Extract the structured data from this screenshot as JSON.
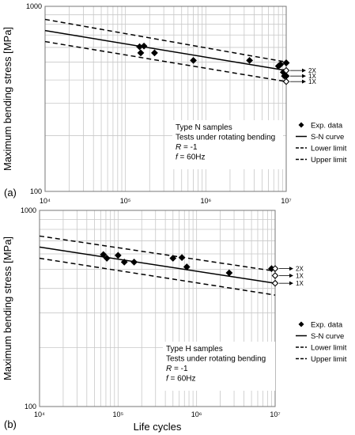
{
  "chart_data": [
    {
      "type": "scatter",
      "panel_label": "(a)",
      "title": "",
      "ylabel": "Maximum bending stress [MPa]",
      "xlabel": "",
      "x_scale": "log",
      "y_scale": "log",
      "xlim": [
        10000,
        10000000
      ],
      "ylim": [
        100,
        1000
      ],
      "x_ticks": [
        "10⁴",
        "10⁵",
        "10⁶",
        "10⁷"
      ],
      "y_ticks": [
        "1000",
        "100"
      ],
      "grid": true,
      "legend_position": "right",
      "legend": [
        "Exp. data",
        "S-N curve",
        "Lower limit",
        "Upper limit"
      ],
      "annotation_lines": [
        "Type N samples",
        "Tests under rotating bending",
        "R = -1",
        "f = 60Hz"
      ],
      "sn_curve": {
        "x": [
          10000,
          10000000
        ],
        "y": [
          740,
          450
        ]
      },
      "lower_limit": {
        "x": [
          10000,
          10000000
        ],
        "y": [
          645,
          392
        ]
      },
      "upper_limit": {
        "x": [
          10000,
          10000000
        ],
        "y": [
          850,
          500
        ]
      },
      "exp_data": {
        "x": [
          150000,
          170000,
          155000,
          230000,
          700000,
          3500000,
          8000000,
          8500000,
          9200000,
          9500000,
          10000000
        ],
        "y": [
          605,
          610,
          560,
          560,
          510,
          510,
          475,
          485,
          440,
          420,
          495
        ]
      },
      "runouts": [
        {
          "x": 10000000,
          "y": 495,
          "filled": true,
          "label": ""
        },
        {
          "x": 10000000,
          "y": 450,
          "filled": false,
          "label": "2X"
        },
        {
          "x": 10000000,
          "y": 420,
          "filled": true,
          "label": "1X"
        },
        {
          "x": 10000000,
          "y": 392,
          "filled": false,
          "label": "1X"
        }
      ]
    },
    {
      "type": "scatter",
      "panel_label": "(b)",
      "title": "",
      "ylabel": "Maximum bending stress [MPa]",
      "xlabel": "Life cycles",
      "x_scale": "log",
      "y_scale": "log",
      "xlim": [
        10000,
        10000000
      ],
      "ylim": [
        100,
        1000
      ],
      "x_ticks": [
        "10⁴",
        "10⁵",
        "10⁶",
        "10⁷"
      ],
      "y_ticks": [
        "1000",
        "100"
      ],
      "grid": true,
      "legend_position": "right",
      "legend": [
        "Exp. data",
        "S-N curve",
        "Lower limit",
        "Upper limit"
      ],
      "annotation_lines": [
        "Type H samples",
        "Tests under rotating bending",
        "R = -1",
        "f = 60Hz"
      ],
      "sn_curve": {
        "x": [
          10000,
          10000000
        ],
        "y": [
          650,
          425
        ]
      },
      "lower_limit": {
        "x": [
          10000,
          10000000
        ],
        "y": [
          570,
          370
        ]
      },
      "upper_limit": {
        "x": [
          10000,
          10000000
        ],
        "y": [
          740,
          490
        ]
      },
      "exp_data": {
        "x": [
          65000,
          72000,
          100000,
          120000,
          160000,
          500000,
          650000,
          750000,
          2600000,
          9000000
        ],
        "y": [
          595,
          570,
          590,
          545,
          545,
          570,
          575,
          515,
          480,
          505
        ]
      },
      "runouts": [
        {
          "x": 10000000,
          "y": 505,
          "filled": false,
          "label": "2X"
        },
        {
          "x": 10000000,
          "y": 465,
          "filled": false,
          "label": "1X"
        },
        {
          "x": 10000000,
          "y": 425,
          "filled": false,
          "label": "1X"
        }
      ]
    }
  ]
}
